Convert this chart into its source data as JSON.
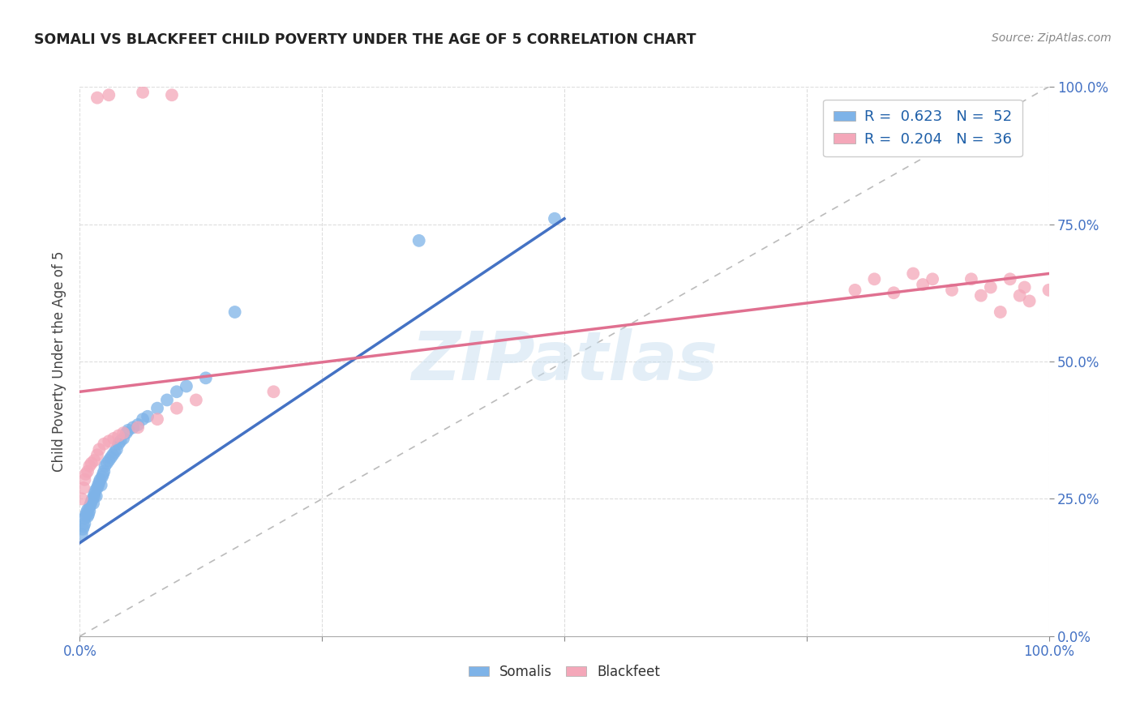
{
  "title": "SOMALI VS BLACKFEET CHILD POVERTY UNDER THE AGE OF 5 CORRELATION CHART",
  "source": "Source: ZipAtlas.com",
  "ylabel": "Child Poverty Under the Age of 5",
  "somali_R": "0.623",
  "somali_N": "52",
  "blackfeet_R": "0.204",
  "blackfeet_N": "36",
  "somali_color": "#7EB3E8",
  "blackfeet_color": "#F4A7B9",
  "regression_blue": "#4472C4",
  "regression_pink": "#E07090",
  "diagonal_color": "#BBBBBB",
  "axis_color": "#4472C4",
  "background_color": "#FFFFFF",
  "watermark": "ZIPatlas",
  "watermark_color": "#C8DFF0",
  "legend_color": "#1E5FA8",
  "grid_color": "#DDDDDD",
  "xlim": [
    0.0,
    1.0
  ],
  "ylim": [
    0.0,
    1.0
  ],
  "xticks": [
    0.0,
    0.25,
    0.5,
    0.75,
    1.0
  ],
  "yticks": [
    0.0,
    0.25,
    0.5,
    0.75,
    1.0
  ],
  "xticklabels": [
    "0.0%",
    "",
    "",
    "",
    "100.0%"
  ],
  "yticklabels_right": [
    "0.0%",
    "25.0%",
    "50.0%",
    "75.0%",
    "100.0%"
  ],
  "somali_x": [
    0.002,
    0.003,
    0.004,
    0.005,
    0.005,
    0.006,
    0.007,
    0.008,
    0.008,
    0.009,
    0.01,
    0.01,
    0.011,
    0.012,
    0.013,
    0.014,
    0.015,
    0.015,
    0.016,
    0.017,
    0.018,
    0.019,
    0.02,
    0.021,
    0.022,
    0.023,
    0.024,
    0.025,
    0.026,
    0.028,
    0.03,
    0.032,
    0.034,
    0.036,
    0.038,
    0.04,
    0.042,
    0.045,
    0.048,
    0.05,
    0.055,
    0.06,
    0.065,
    0.07,
    0.08,
    0.09,
    0.1,
    0.11,
    0.13,
    0.16,
    0.35,
    0.49
  ],
  "somali_y": [
    0.185,
    0.195,
    0.2,
    0.205,
    0.215,
    0.22,
    0.225,
    0.218,
    0.23,
    0.222,
    0.228,
    0.235,
    0.24,
    0.245,
    0.25,
    0.242,
    0.255,
    0.26,
    0.265,
    0.255,
    0.27,
    0.275,
    0.28,
    0.285,
    0.275,
    0.29,
    0.295,
    0.3,
    0.31,
    0.315,
    0.32,
    0.325,
    0.33,
    0.335,
    0.34,
    0.35,
    0.355,
    0.36,
    0.37,
    0.375,
    0.38,
    0.385,
    0.395,
    0.4,
    0.415,
    0.43,
    0.445,
    0.455,
    0.47,
    0.59,
    0.72,
    0.76
  ],
  "blackfeet_x": [
    0.002,
    0.004,
    0.005,
    0.006,
    0.008,
    0.01,
    0.012,
    0.015,
    0.018,
    0.02,
    0.025,
    0.03,
    0.035,
    0.04,
    0.045,
    0.06,
    0.08,
    0.1,
    0.12,
    0.2,
    0.8,
    0.82,
    0.84,
    0.86,
    0.87,
    0.88,
    0.9,
    0.92,
    0.93,
    0.94,
    0.95,
    0.96,
    0.97,
    0.975,
    0.98,
    1.0
  ],
  "blackfeet_y": [
    0.25,
    0.27,
    0.285,
    0.295,
    0.3,
    0.31,
    0.315,
    0.32,
    0.33,
    0.34,
    0.35,
    0.355,
    0.36,
    0.365,
    0.37,
    0.38,
    0.395,
    0.415,
    0.43,
    0.445,
    0.63,
    0.65,
    0.625,
    0.66,
    0.64,
    0.65,
    0.63,
    0.65,
    0.62,
    0.635,
    0.59,
    0.65,
    0.62,
    0.635,
    0.61,
    0.63
  ],
  "blackfeet_extra_high": [
    [
      0.018,
      0.98
    ],
    [
      0.03,
      0.985
    ],
    [
      0.065,
      0.99
    ],
    [
      0.095,
      0.985
    ]
  ]
}
